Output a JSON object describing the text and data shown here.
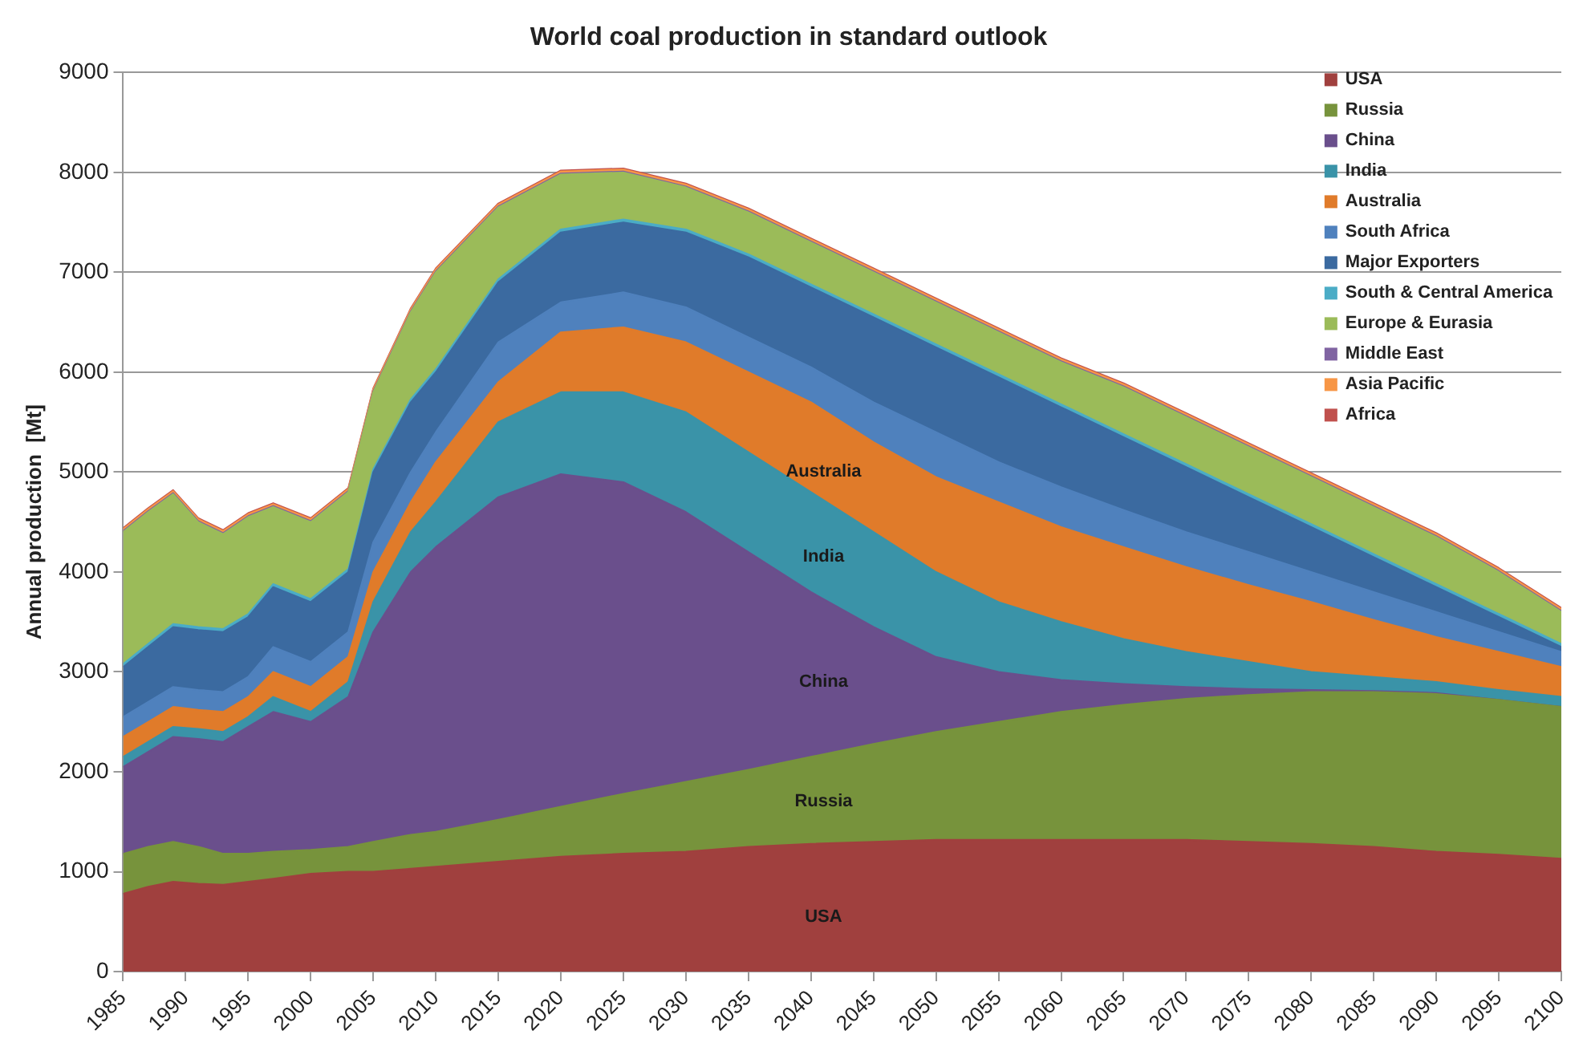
{
  "chart_data": {
    "type": "area",
    "stacked": true,
    "title": "World coal production in standard outlook",
    "ylabel": "Annual production  [Mt]",
    "x": [
      1985,
      1987,
      1989,
      1991,
      1993,
      1995,
      1997,
      2000,
      2003,
      2005,
      2008,
      2010,
      2015,
      2020,
      2025,
      2030,
      2035,
      2040,
      2045,
      2050,
      2055,
      2060,
      2065,
      2070,
      2075,
      2080,
      2085,
      2090,
      2095,
      2100
    ],
    "xlim": [
      1985,
      2100
    ],
    "xticks": [
      1985,
      1990,
      1995,
      2000,
      2005,
      2010,
      2015,
      2020,
      2025,
      2030,
      2035,
      2040,
      2045,
      2050,
      2055,
      2060,
      2065,
      2070,
      2075,
      2080,
      2085,
      2090,
      2095,
      2100
    ],
    "ylim": [
      0,
      9000
    ],
    "yticks": [
      0,
      1000,
      2000,
      3000,
      4000,
      5000,
      6000,
      7000,
      8000,
      9000
    ],
    "grid": "y",
    "legend": "top right",
    "marker": "none",
    "series": [
      {
        "name": "USA",
        "color": "#a0403e",
        "values": [
          780,
          850,
          900,
          880,
          870,
          900,
          930,
          980,
          1000,
          1000,
          1030,
          1050,
          1100,
          1150,
          1180,
          1200,
          1250,
          1280,
          1300,
          1320,
          1320,
          1320,
          1320,
          1320,
          1300,
          1280,
          1250,
          1200,
          1170,
          1130
        ]
      },
      {
        "name": "Russia",
        "color": "#77933c",
        "values": [
          400,
          400,
          400,
          370,
          310,
          280,
          270,
          240,
          250,
          300,
          340,
          350,
          420,
          500,
          600,
          700,
          770,
          870,
          980,
          1080,
          1180,
          1280,
          1350,
          1410,
          1470,
          1520,
          1550,
          1580,
          1550,
          1520
        ]
      },
      {
        "name": "China",
        "color": "#6a4f8c",
        "values": [
          870,
          950,
          1050,
          1080,
          1120,
          1270,
          1400,
          1280,
          1500,
          2100,
          2630,
          2850,
          3230,
          3330,
          3120,
          2700,
          2180,
          1650,
          1170,
          750,
          500,
          320,
          210,
          120,
          60,
          20,
          10,
          10,
          0,
          0
        ]
      },
      {
        "name": "India",
        "color": "#3a93a8",
        "values": [
          100,
          100,
          100,
          100,
          100,
          100,
          150,
          100,
          150,
          300,
          400,
          450,
          750,
          820,
          900,
          1000,
          1000,
          1000,
          950,
          850,
          700,
          580,
          450,
          350,
          270,
          180,
          140,
          110,
          100,
          100
        ]
      },
      {
        "name": "Australia",
        "color": "#e07b2a",
        "values": [
          200,
          200,
          200,
          190,
          200,
          200,
          250,
          250,
          250,
          300,
          300,
          400,
          400,
          600,
          650,
          700,
          800,
          900,
          900,
          950,
          1000,
          950,
          920,
          850,
          770,
          700,
          570,
          450,
          380,
          300
        ]
      },
      {
        "name": "South Africa",
        "color": "#4f81bd",
        "values": [
          200,
          200,
          200,
          200,
          200,
          200,
          250,
          250,
          250,
          300,
          300,
          300,
          400,
          300,
          350,
          350,
          350,
          350,
          400,
          450,
          400,
          400,
          370,
          350,
          330,
          300,
          280,
          250,
          200,
          150
        ]
      },
      {
        "name": "Major Exporters",
        "color": "#3b6aa0",
        "values": [
          500,
          550,
          600,
          600,
          600,
          600,
          600,
          600,
          600,
          700,
          700,
          600,
          600,
          700,
          700,
          750,
          800,
          800,
          850,
          850,
          850,
          800,
          730,
          650,
          550,
          450,
          350,
          250,
          150,
          50
        ]
      },
      {
        "name": "South & Central America",
        "color": "#4bacc6",
        "values": [
          30,
          30,
          30,
          30,
          30,
          30,
          30,
          30,
          30,
          30,
          30,
          30,
          30,
          30,
          30,
          30,
          30,
          30,
          30,
          30,
          30,
          30,
          30,
          30,
          30,
          30,
          30,
          30,
          30,
          30
        ]
      },
      {
        "name": "Europe & Eurasia",
        "color": "#9bbb59",
        "values": [
          1320,
          1320,
          1300,
          1050,
          950,
          970,
          770,
          770,
          770,
          770,
          870,
          970,
          720,
          550,
          470,
          420,
          420,
          420,
          420,
          420,
          420,
          420,
          470,
          470,
          470,
          470,
          470,
          470,
          420,
          320
        ]
      },
      {
        "name": "Middle East",
        "color": "#8064a2",
        "values": [
          10,
          10,
          10,
          10,
          10,
          10,
          10,
          10,
          10,
          10,
          10,
          10,
          10,
          10,
          10,
          10,
          10,
          10,
          10,
          10,
          10,
          10,
          10,
          10,
          10,
          10,
          10,
          10,
          10,
          10
        ]
      },
      {
        "name": "Asia Pacific",
        "color": "#f79646",
        "values": [
          20,
          20,
          20,
          20,
          20,
          20,
          20,
          20,
          20,
          20,
          20,
          20,
          20,
          20,
          20,
          20,
          20,
          20,
          20,
          20,
          20,
          20,
          20,
          20,
          20,
          20,
          20,
          20,
          20,
          20
        ]
      },
      {
        "name": "Africa",
        "color": "#c0504d",
        "values": [
          10,
          10,
          10,
          10,
          10,
          10,
          10,
          10,
          10,
          10,
          10,
          10,
          10,
          10,
          10,
          10,
          10,
          10,
          10,
          10,
          10,
          10,
          10,
          10,
          10,
          10,
          10,
          10,
          10,
          10
        ]
      }
    ],
    "annotations": [
      "Australia",
      "India",
      "China",
      "Russia",
      "USA"
    ]
  }
}
